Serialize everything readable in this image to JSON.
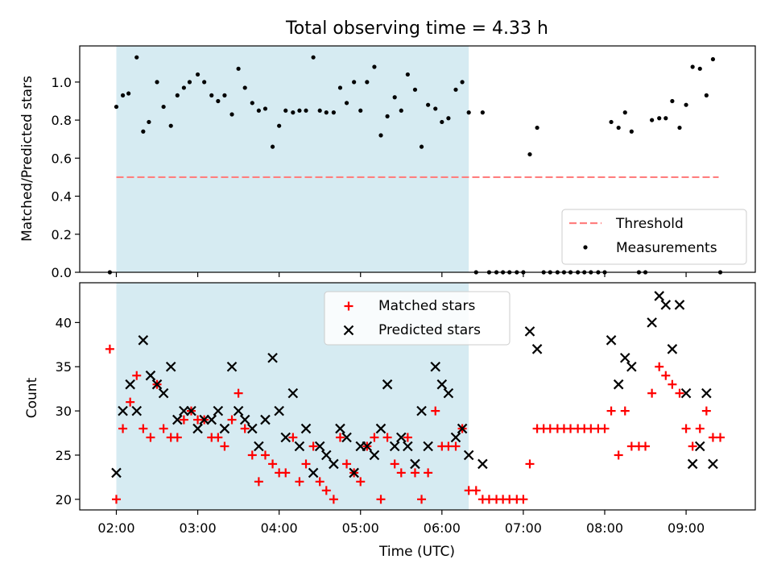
{
  "figure": {
    "title": "Total observing time = 4.33 h",
    "xlabel": "Time (UTC)",
    "x_ticks": [
      "02:00",
      "03:00",
      "04:00",
      "05:00",
      "06:00",
      "07:00",
      "08:00",
      "09:00"
    ],
    "x_range_hours": [
      1.55,
      9.85
    ],
    "shaded_span_hours": [
      2.0,
      6.33
    ],
    "colors": {
      "shade": "#add8e6",
      "threshold": "#ff7f7f",
      "measurement": "#000000",
      "matched": "#ff0000",
      "predicted": "#000000"
    }
  },
  "chart_data": [
    {
      "type": "scatter",
      "panel": "top",
      "ylabel": "Matched/Predicted stars",
      "ylim": [
        0,
        1.19
      ],
      "y_ticks": [
        "0.0",
        "0.2",
        "0.4",
        "0.6",
        "0.8",
        "1.0"
      ],
      "legend_position": "lower-right",
      "legend": {
        "threshold": "Threshold",
        "measurements": "Measurements"
      },
      "threshold": {
        "name": "Threshold",
        "y": 0.5,
        "x_range": [
          2.0,
          9.4
        ],
        "style": "dashed"
      },
      "measurements": {
        "name": "Measurements",
        "x": [
          1.92,
          2.0,
          2.08,
          2.15,
          2.25,
          2.33,
          2.4,
          2.5,
          2.58,
          2.67,
          2.75,
          2.83,
          2.9,
          3.0,
          3.08,
          3.17,
          3.25,
          3.33,
          3.42,
          3.5,
          3.58,
          3.67,
          3.75,
          3.83,
          3.92,
          4.0,
          4.08,
          4.17,
          4.25,
          4.33,
          4.42,
          4.5,
          4.58,
          4.67,
          4.75,
          4.83,
          4.92,
          5.0,
          5.08,
          5.17,
          5.25,
          5.33,
          5.42,
          5.5,
          5.58,
          5.67,
          5.75,
          5.83,
          5.92,
          6.0,
          6.08,
          6.17,
          6.25,
          6.33,
          6.42,
          6.5,
          6.58,
          6.67,
          6.75,
          6.83,
          6.92,
          7.0,
          7.08,
          7.17,
          7.25,
          7.33,
          7.42,
          7.5,
          7.58,
          7.67,
          7.75,
          7.83,
          7.92,
          8.0,
          8.08,
          8.17,
          8.25,
          8.33,
          8.42,
          8.5,
          8.58,
          8.67,
          8.75,
          8.83,
          8.92,
          9.0,
          9.08,
          9.17,
          9.25,
          9.33,
          9.42
        ],
        "y": [
          0.0,
          0.87,
          0.93,
          0.94,
          1.13,
          0.74,
          0.79,
          1.0,
          0.87,
          0.77,
          0.93,
          0.97,
          1.0,
          1.04,
          1.0,
          0.93,
          0.9,
          0.93,
          0.83,
          1.07,
          0.97,
          0.89,
          0.85,
          0.86,
          0.66,
          0.77,
          0.85,
          0.84,
          0.85,
          0.85,
          1.13,
          0.85,
          0.84,
          0.84,
          0.97,
          0.89,
          1.0,
          0.85,
          1.0,
          1.08,
          0.72,
          0.82,
          0.92,
          0.85,
          1.04,
          0.96,
          0.66,
          0.88,
          0.86,
          0.79,
          0.81,
          0.96,
          1.0,
          0.84,
          0.0,
          0.84,
          0.0,
          0.0,
          0.0,
          0.0,
          0.0,
          0.0,
          0.62,
          0.76,
          0.0,
          0.0,
          0.0,
          0.0,
          0.0,
          0.0,
          0.0,
          0.0,
          0.0,
          0.0,
          0.79,
          0.76,
          0.84,
          0.74,
          0.0,
          0.0,
          0.8,
          0.81,
          0.81,
          0.9,
          0.76,
          0.88,
          1.08,
          1.07,
          0.93,
          1.12,
          0.0
        ]
      }
    },
    {
      "type": "scatter",
      "panel": "bottom",
      "ylabel": "Count",
      "ylim": [
        18.8,
        44.5
      ],
      "y_ticks": [
        20,
        25,
        30,
        35,
        40
      ],
      "legend_position": "top-center",
      "legend": {
        "matched": "Matched stars",
        "predicted": "Predicted stars"
      },
      "series": [
        {
          "name": "Matched stars",
          "marker": "plus",
          "x": [
            1.92,
            2.0,
            2.08,
            2.17,
            2.25,
            2.33,
            2.42,
            2.5,
            2.58,
            2.67,
            2.75,
            2.83,
            2.92,
            3.0,
            3.08,
            3.17,
            3.25,
            3.33,
            3.42,
            3.5,
            3.58,
            3.67,
            3.75,
            3.83,
            3.92,
            4.0,
            4.08,
            4.17,
            4.25,
            4.33,
            4.42,
            4.5,
            4.58,
            4.67,
            4.75,
            4.83,
            4.92,
            5.0,
            5.08,
            5.17,
            5.25,
            5.33,
            5.42,
            5.5,
            5.58,
            5.67,
            5.75,
            5.83,
            5.92,
            6.0,
            6.08,
            6.17,
            6.25,
            6.33,
            6.42,
            6.5,
            6.58,
            6.67,
            6.75,
            6.83,
            6.92,
            7.0,
            7.08,
            7.17,
            7.25,
            7.33,
            7.42,
            7.5,
            7.58,
            7.67,
            7.75,
            7.83,
            7.92,
            8.0,
            8.08,
            8.17,
            8.25,
            8.33,
            8.42,
            8.5,
            8.58,
            8.67,
            8.75,
            8.83,
            8.92,
            9.0,
            9.08,
            9.17,
            9.25,
            9.33,
            9.42
          ],
          "y": [
            37,
            20,
            28,
            31,
            34,
            28,
            27,
            33,
            28,
            27,
            27,
            29,
            30,
            29,
            29,
            27,
            27,
            26,
            29,
            32,
            28,
            25,
            22,
            25,
            24,
            23,
            23,
            27,
            22,
            24,
            26,
            22,
            21,
            20,
            27,
            24,
            23,
            22,
            26,
            27,
            20,
            27,
            24,
            23,
            27,
            23,
            20,
            23,
            30,
            26,
            26,
            26,
            28,
            21,
            21,
            20,
            20,
            20,
            20,
            20,
            20,
            20,
            24,
            28,
            28,
            28,
            28,
            28,
            28,
            28,
            28,
            28,
            28,
            28,
            30,
            25,
            30,
            26,
            26,
            26,
            32,
            35,
            34,
            33,
            32,
            28,
            26,
            28,
            30,
            27,
            27
          ]
        },
        {
          "name": "Predicted stars",
          "marker": "x",
          "x": [
            2.0,
            2.08,
            2.17,
            2.25,
            2.33,
            2.42,
            2.5,
            2.58,
            2.67,
            2.75,
            2.83,
            2.92,
            3.0,
            3.08,
            3.17,
            3.25,
            3.33,
            3.42,
            3.5,
            3.58,
            3.67,
            3.75,
            3.83,
            3.92,
            4.0,
            4.08,
            4.17,
            4.25,
            4.33,
            4.42,
            4.5,
            4.58,
            4.67,
            4.75,
            4.83,
            4.92,
            5.0,
            5.08,
            5.17,
            5.25,
            5.33,
            5.42,
            5.5,
            5.58,
            5.67,
            5.75,
            5.83,
            5.92,
            6.0,
            6.08,
            6.17,
            6.25,
            6.33,
            6.5,
            7.08,
            7.17,
            8.08,
            8.17,
            8.25,
            8.33,
            8.58,
            8.67,
            8.75,
            8.83,
            8.92,
            9.0,
            9.08,
            9.17,
            9.25,
            9.33
          ],
          "y": [
            23,
            30,
            33,
            30,
            38,
            34,
            33,
            32,
            35,
            29,
            30,
            30,
            28,
            29,
            29,
            30,
            28,
            35,
            30,
            29,
            28,
            26,
            29,
            36,
            30,
            27,
            32,
            26,
            28,
            23,
            26,
            25,
            24,
            28,
            27,
            23,
            26,
            26,
            25,
            28,
            33,
            26,
            27,
            26,
            24,
            30,
            26,
            35,
            33,
            32,
            27,
            28,
            25,
            24,
            39,
            37,
            38,
            33,
            36,
            35,
            40,
            43,
            42,
            37,
            42,
            32,
            24,
            26,
            32,
            24
          ]
        }
      ]
    }
  ]
}
